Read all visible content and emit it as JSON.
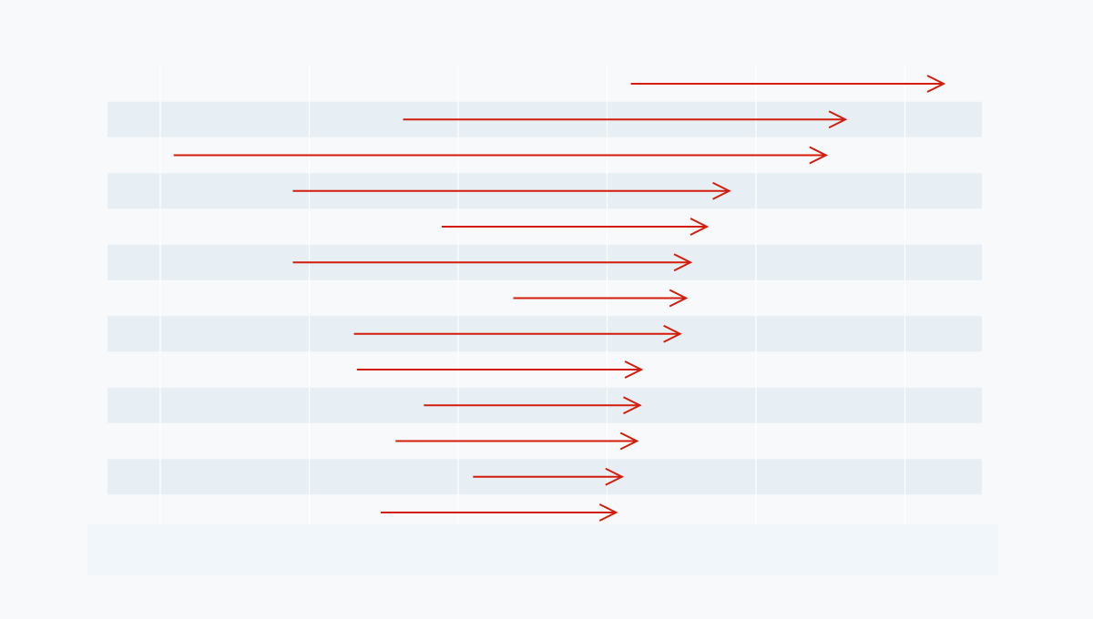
{
  "chart_data": {
    "type": "arrow",
    "title": "",
    "xlabel": "",
    "ylabel": "",
    "xlim": [
      0,
      5.9
    ],
    "grid": true,
    "colors": {
      "arrow": "#d41c0c",
      "band": "#e7eff5",
      "grid": "#ffffff",
      "background": "#f7f9fb"
    },
    "series": [
      {
        "start": 3.16,
        "end": 5.26
      },
      {
        "start": 1.63,
        "end": 4.6
      },
      {
        "start": 0.09,
        "end": 4.47
      },
      {
        "start": 0.89,
        "end": 3.82
      },
      {
        "start": 1.89,
        "end": 3.67
      },
      {
        "start": 0.89,
        "end": 3.56
      },
      {
        "start": 2.37,
        "end": 3.53
      },
      {
        "start": 1.3,
        "end": 3.49
      },
      {
        "start": 1.32,
        "end": 3.23
      },
      {
        "start": 1.77,
        "end": 3.22
      },
      {
        "start": 1.58,
        "end": 3.2
      },
      {
        "start": 2.1,
        "end": 3.1
      },
      {
        "start": 1.48,
        "end": 3.06
      }
    ]
  }
}
